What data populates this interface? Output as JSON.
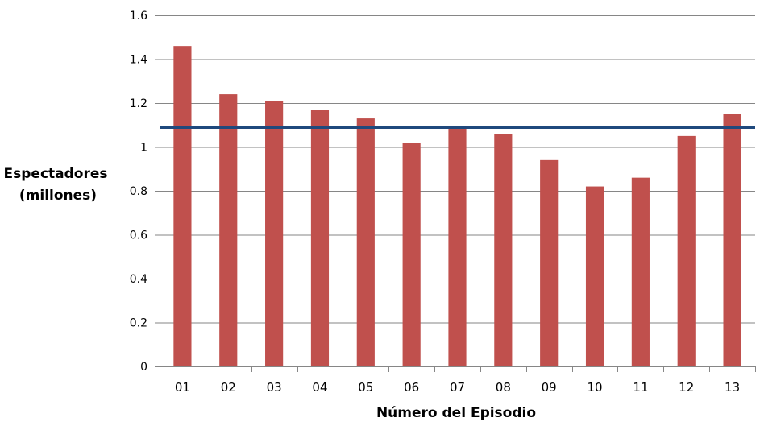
{
  "chart_data": {
    "type": "bar",
    "title": "",
    "xlabel": "Número del Episodio",
    "ylabel_lines": [
      "Espectadores",
      "(millones)"
    ],
    "categories": [
      "01",
      "02",
      "03",
      "04",
      "05",
      "06",
      "07",
      "08",
      "09",
      "10",
      "11",
      "12",
      "13"
    ],
    "series": [
      {
        "type": "bar",
        "values": [
          1.46,
          1.24,
          1.21,
          1.17,
          1.13,
          1.02,
          1.09,
          1.06,
          0.94,
          0.82,
          0.86,
          1.05,
          1.15
        ]
      },
      {
        "type": "line",
        "value": 1.09
      }
    ],
    "ylim": [
      0,
      1.6
    ],
    "yticks": [
      0,
      0.2,
      0.4,
      0.6,
      0.8,
      1,
      1.2,
      1.4,
      1.6
    ],
    "ytick_labels": [
      "0",
      "0.2",
      "0.4",
      "0.6",
      "0.8",
      "1",
      "1.2",
      "1.4",
      "1.6"
    ],
    "grid": true,
    "legend": "none",
    "colors": {
      "bar": "#C0504D",
      "line": "#1F497D",
      "grid": "#868686"
    }
  }
}
